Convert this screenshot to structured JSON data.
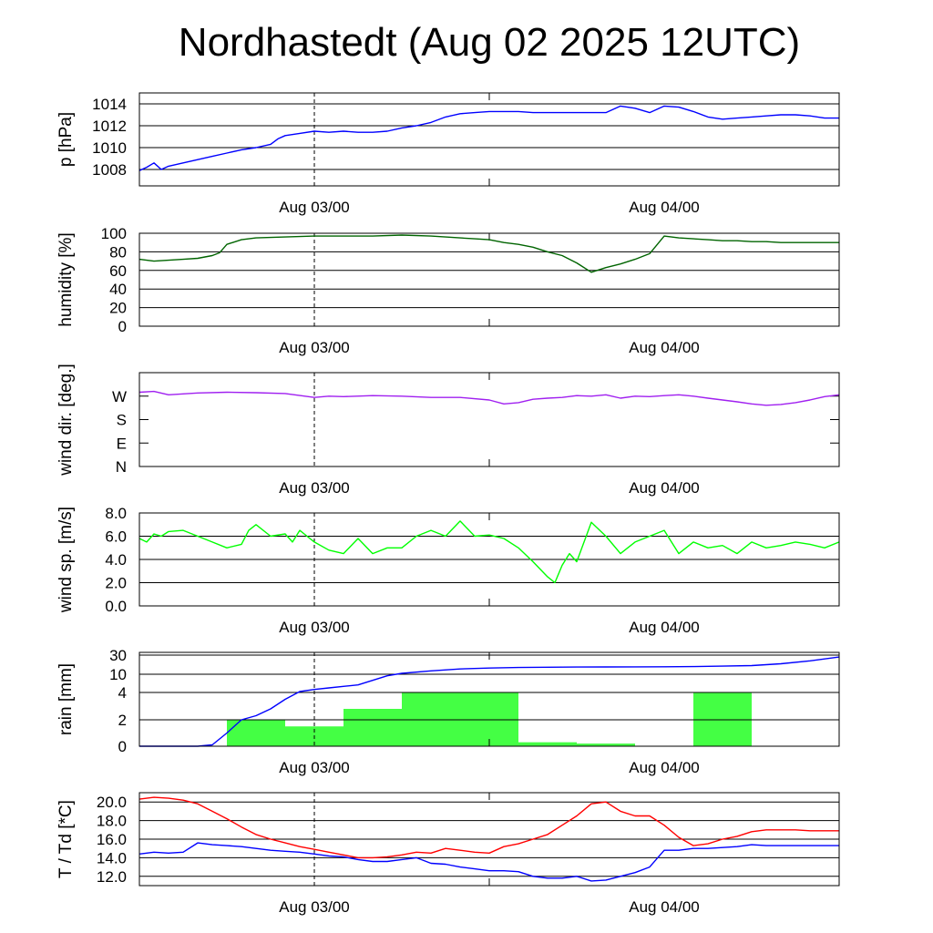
{
  "title": "Nordhastedt (Aug 02 2025 12UTC)",
  "colors": {
    "pressure": "#0000ff",
    "humidity": "#006400",
    "wind_dir": "#a020f0",
    "wind_speed": "#00ff00",
    "rain_bars": "#44ff44",
    "rain_cum": "#0000ff",
    "temperature": "#ff0000",
    "dewpoint": "#0000ff"
  },
  "chart_data": [
    {
      "id": "pressure",
      "type": "line",
      "ylabel": "p [hPa]",
      "ylim": [
        1006.5,
        1015
      ],
      "yticks": [
        1008,
        1010,
        1012,
        1014
      ],
      "ytick_labels": [
        "1008",
        "1010",
        "1012",
        "1014"
      ],
      "grid": true,
      "xlim": [
        12,
        60
      ],
      "x_tick_labels": [
        {
          "x": 24,
          "label": "Aug 03/00"
        },
        {
          "x": 48,
          "label": "Aug 04/00"
        }
      ],
      "series": [
        {
          "key": "p",
          "color": "pressure",
          "x": [
            12,
            12.5,
            13,
            13.5,
            14,
            15,
            16,
            17,
            18,
            19,
            20,
            21,
            21.5,
            22,
            23,
            24,
            25,
            26,
            27,
            28,
            29,
            30,
            31,
            32,
            33,
            34,
            35,
            36,
            37,
            38,
            39,
            40,
            41,
            42,
            43,
            44,
            45,
            46,
            47,
            47.5,
            48,
            49,
            50,
            51,
            52,
            53,
            54,
            55,
            56,
            57,
            58,
            59,
            60
          ],
          "y": [
            1007.9,
            1008.2,
            1008.6,
            1008.0,
            1008.3,
            1008.6,
            1008.9,
            1009.2,
            1009.5,
            1009.8,
            1010.0,
            1010.3,
            1010.8,
            1011.1,
            1011.3,
            1011.5,
            1011.4,
            1011.5,
            1011.4,
            1011.4,
            1011.5,
            1011.8,
            1012.0,
            1012.3,
            1012.8,
            1013.1,
            1013.2,
            1013.3,
            1013.3,
            1013.3,
            1013.2,
            1013.2,
            1013.2,
            1013.2,
            1013.2,
            1013.2,
            1013.8,
            1013.6,
            1013.2,
            1013.5,
            1013.8,
            1013.7,
            1013.3,
            1012.8,
            1012.6,
            1012.7,
            1012.8,
            1012.9,
            1013.0,
            1013.0,
            1012.9,
            1012.7,
            1012.7
          ]
        }
      ]
    },
    {
      "id": "humidity",
      "type": "line",
      "ylabel": "humidity [%]",
      "ylim": [
        0,
        100
      ],
      "yticks": [
        0,
        20,
        40,
        60,
        80,
        100
      ],
      "ytick_labels": [
        "0",
        "20",
        "40",
        "60",
        "80",
        "100"
      ],
      "grid": true,
      "xlim": [
        12,
        60
      ],
      "x_tick_labels": [
        {
          "x": 24,
          "label": "Aug 03/00"
        },
        {
          "x": 48,
          "label": "Aug 04/00"
        }
      ],
      "series": [
        {
          "key": "rh",
          "color": "humidity",
          "x": [
            12,
            13,
            14,
            15,
            16,
            17,
            17.5,
            18,
            19,
            20,
            22,
            24,
            26,
            28,
            30,
            32,
            33,
            34,
            35,
            36,
            37,
            38,
            39,
            40,
            41,
            42,
            43,
            44,
            45,
            46,
            47,
            48,
            49,
            50,
            51,
            52,
            53,
            54,
            55,
            56,
            57,
            58,
            59,
            60
          ],
          "y": [
            72,
            70,
            71,
            72,
            73,
            76,
            79,
            88,
            93,
            95,
            96,
            97,
            97,
            97,
            98,
            97,
            96,
            95,
            94,
            93,
            90,
            88,
            85,
            80,
            76,
            68,
            58,
            63,
            67,
            72,
            78,
            97,
            95,
            94,
            93,
            92,
            92,
            91,
            91,
            90,
            90,
            90,
            90,
            90
          ]
        }
      ]
    },
    {
      "id": "wind_direction",
      "type": "line",
      "ylabel": "wind dir. [deg.]",
      "ylim": [
        0,
        360
      ],
      "yticks": [
        0,
        90,
        180,
        270
      ],
      "ytick_labels": [
        "N",
        "E",
        "S",
        "W"
      ],
      "grid": false,
      "xlim": [
        12,
        60
      ],
      "x_tick_labels": [
        {
          "x": 24,
          "label": "Aug 03/00"
        },
        {
          "x": 48,
          "label": "Aug 04/00"
        }
      ],
      "series": [
        {
          "key": "dir",
          "color": "wind_dir",
          "x": [
            12,
            13,
            14,
            16,
            18,
            20,
            22,
            24,
            25,
            26,
            28,
            30,
            32,
            34,
            36,
            37,
            38,
            39,
            40,
            41,
            42,
            43,
            44,
            45,
            46,
            47,
            48,
            49,
            50,
            51,
            52,
            53,
            54,
            55,
            56,
            57,
            58,
            59,
            60
          ],
          "y": [
            285,
            288,
            275,
            282,
            285,
            283,
            280,
            265,
            270,
            268,
            272,
            270,
            265,
            265,
            255,
            240,
            245,
            258,
            262,
            265,
            272,
            270,
            275,
            262,
            270,
            268,
            272,
            275,
            270,
            262,
            255,
            248,
            240,
            235,
            238,
            245,
            255,
            268,
            275
          ]
        }
      ]
    },
    {
      "id": "wind_speed",
      "type": "line",
      "ylabel": "wind sp. [m/s]",
      "ylim": [
        0,
        8
      ],
      "yticks": [
        0,
        2,
        4,
        6,
        8
      ],
      "ytick_labels": [
        "0.0",
        "2.0",
        "4.0",
        "6.0",
        "8.0"
      ],
      "grid": true,
      "xlim": [
        12,
        60
      ],
      "x_tick_labels": [
        {
          "x": 24,
          "label": "Aug 03/00"
        },
        {
          "x": 48,
          "label": "Aug 04/00"
        }
      ],
      "series": [
        {
          "key": "ff",
          "color": "wind_speed",
          "x": [
            12,
            12.5,
            13,
            13.5,
            14,
            15,
            16,
            17,
            18,
            19,
            19.5,
            20,
            21,
            22,
            22.5,
            23,
            23.5,
            24,
            25,
            26,
            27,
            28,
            29,
            30,
            31,
            32,
            33,
            34,
            35,
            36,
            37,
            38,
            39,
            40,
            40.5,
            41,
            41.5,
            42,
            43,
            44,
            45,
            46,
            47,
            48,
            49,
            50,
            51,
            52,
            53,
            54,
            55,
            56,
            57,
            58,
            59,
            60
          ],
          "y": [
            5.8,
            5.5,
            6.2,
            6.0,
            6.4,
            6.5,
            6.0,
            5.5,
            5.0,
            5.3,
            6.5,
            7.0,
            6.0,
            6.2,
            5.5,
            6.5,
            6.0,
            5.5,
            4.8,
            4.5,
            5.8,
            4.5,
            5.0,
            5.0,
            6.0,
            6.5,
            6.0,
            7.3,
            6.0,
            6.1,
            5.8,
            5.0,
            3.8,
            2.5,
            2.0,
            3.5,
            4.5,
            3.8,
            7.2,
            6.0,
            4.5,
            5.5,
            6.0,
            6.5,
            4.5,
            5.5,
            5.0,
            5.2,
            4.5,
            5.5,
            5.0,
            5.2,
            5.5,
            5.3,
            5.0,
            5.5
          ]
        }
      ]
    },
    {
      "id": "rain",
      "type": "bar",
      "ylabel": "rain [mm]",
      "yticks": [
        0,
        2,
        4,
        10,
        30
      ],
      "ytick_labels": [
        "0",
        "2",
        "4",
        "10",
        "30"
      ],
      "grid": true,
      "xlim": [
        12,
        60
      ],
      "x_tick_labels": [
        {
          "x": 24,
          "label": "Aug 03/00"
        },
        {
          "x": 48,
          "label": "Aug 04/00"
        }
      ],
      "bars": {
        "x_start": [
          18,
          22,
          26,
          30,
          34,
          38,
          42,
          46,
          50
        ],
        "x_end": [
          22,
          26,
          30,
          34,
          38,
          42,
          46,
          50,
          54
        ],
        "values": [
          2.0,
          1.5,
          2.8,
          4.0,
          4.1,
          0.3,
          0.2,
          0.0,
          4.0
        ]
      },
      "series": [
        {
          "key": "cum",
          "color": "rain_cum",
          "x": [
            12,
            16,
            17,
            18,
            19,
            20,
            21,
            22,
            23,
            24,
            25,
            26,
            27,
            28,
            29,
            30,
            32,
            34,
            36,
            38,
            40,
            42,
            44,
            46,
            48,
            50,
            52,
            54,
            56,
            58,
            60
          ],
          "y": [
            0,
            0,
            0.1,
            1.0,
            2.0,
            2.3,
            2.8,
            3.5,
            4.3,
            5.0,
            5.5,
            6.0,
            6.5,
            8.0,
            9.5,
            11.0,
            13.5,
            15.5,
            16.5,
            17.0,
            17.3,
            17.5,
            17.6,
            17.7,
            17.8,
            18.0,
            18.5,
            19.0,
            21.0,
            24.0,
            28.0
          ]
        }
      ]
    },
    {
      "id": "temperature",
      "type": "line",
      "ylabel": "T / Td [*C]",
      "ylim": [
        11,
        21
      ],
      "yticks": [
        12,
        14,
        16,
        18,
        20
      ],
      "ytick_labels": [
        "12.0",
        "14.0",
        "16.0",
        "18.0",
        "20.0"
      ],
      "grid": true,
      "xlim": [
        12,
        60
      ],
      "x_tick_labels": [
        {
          "x": 24,
          "label": "Aug 03/00"
        },
        {
          "x": 48,
          "label": "Aug 04/00"
        }
      ],
      "series": [
        {
          "key": "T",
          "color": "temperature",
          "x": [
            12,
            13,
            14,
            15,
            16,
            17,
            18,
            19,
            20,
            21,
            22,
            23,
            24,
            25,
            26,
            27,
            28,
            29,
            30,
            31,
            32,
            33,
            34,
            35,
            36,
            37,
            38,
            39,
            40,
            41,
            42,
            43,
            44,
            45,
            46,
            47,
            48,
            49,
            50,
            51,
            52,
            53,
            54,
            55,
            56,
            57,
            58,
            59,
            60
          ],
          "y": [
            20.3,
            20.5,
            20.4,
            20.2,
            19.8,
            19.0,
            18.2,
            17.3,
            16.5,
            16.0,
            15.6,
            15.2,
            14.9,
            14.6,
            14.3,
            14.0,
            14.0,
            14.1,
            14.3,
            14.6,
            14.5,
            15.0,
            14.8,
            14.6,
            14.5,
            15.2,
            15.5,
            16.0,
            16.5,
            17.5,
            18.5,
            19.8,
            20.0,
            19.0,
            18.5,
            18.5,
            17.5,
            16.2,
            15.3,
            15.5,
            16.0,
            16.3,
            16.8,
            17.0,
            17.0,
            17.0,
            16.9,
            16.9,
            16.9
          ]
        },
        {
          "key": "Td",
          "color": "dewpoint",
          "x": [
            12,
            13,
            14,
            15,
            16,
            17,
            18,
            19,
            20,
            21,
            22,
            23,
            24,
            25,
            26,
            27,
            28,
            29,
            30,
            31,
            32,
            33,
            34,
            35,
            36,
            37,
            38,
            39,
            40,
            41,
            42,
            43,
            44,
            45,
            46,
            47,
            48,
            49,
            50,
            51,
            52,
            53,
            54,
            55,
            56,
            57,
            58,
            59,
            60
          ],
          "y": [
            14.4,
            14.6,
            14.5,
            14.6,
            15.6,
            15.4,
            15.3,
            15.2,
            15.0,
            14.8,
            14.7,
            14.6,
            14.4,
            14.2,
            14.1,
            13.8,
            13.6,
            13.6,
            13.8,
            14.0,
            13.4,
            13.3,
            13.0,
            12.8,
            12.6,
            12.6,
            12.5,
            12.0,
            11.8,
            11.8,
            12.0,
            11.5,
            11.6,
            12.0,
            12.4,
            13.0,
            14.8,
            14.8,
            15.0,
            15.0,
            15.1,
            15.2,
            15.4,
            15.3,
            15.3,
            15.3,
            15.3,
            15.3,
            15.3
          ]
        }
      ]
    }
  ]
}
